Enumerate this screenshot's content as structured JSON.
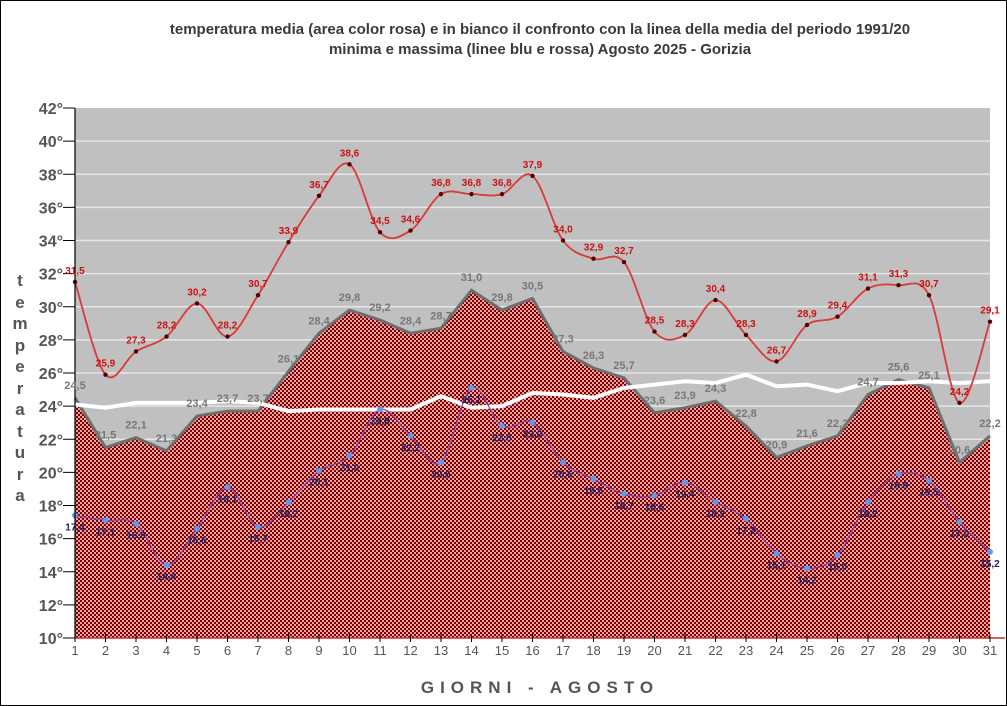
{
  "chart_data": {
    "type": "line",
    "title": "temperatura media (area color rosa) e in bianco il confronto con la linea della media del periodo 1991/20",
    "subtitle": "minima e massima (linee blu e rossa) Agosto 2025 - Gorizia",
    "xlabel": "GIORNI  - AGOSTO",
    "ylabel": "temperatura",
    "ylim": [
      10,
      42
    ],
    "yticks": [
      "10°",
      "12°",
      "14°",
      "16°",
      "18°",
      "20°",
      "22°",
      "24°",
      "26°",
      "28°",
      "30°",
      "32°",
      "34°",
      "36°",
      "38°",
      "40°",
      "42°"
    ],
    "ytick_values": [
      10,
      12,
      14,
      16,
      18,
      20,
      22,
      24,
      26,
      28,
      30,
      32,
      34,
      36,
      38,
      40,
      42
    ],
    "x": [
      1,
      2,
      3,
      4,
      5,
      6,
      7,
      8,
      9,
      10,
      11,
      12,
      13,
      14,
      15,
      16,
      17,
      18,
      19,
      20,
      21,
      22,
      23,
      24,
      25,
      26,
      27,
      28,
      29,
      30,
      31
    ],
    "grid": true,
    "series": [
      {
        "name": "massima",
        "kind": "line",
        "color": "#d93a3a",
        "values": [
          31.5,
          25.9,
          27.3,
          28.2,
          30.2,
          28.2,
          30.7,
          33.9,
          36.7,
          38.6,
          34.5,
          34.6,
          36.8,
          36.8,
          36.8,
          37.9,
          34.0,
          32.9,
          32.7,
          28.5,
          28.3,
          30.4,
          28.3,
          26.7,
          28.9,
          29.4,
          31.1,
          31.3,
          30.7,
          24.2,
          29.1
        ],
        "labels": [
          "31,5",
          "25,9",
          "27,3",
          "28,2",
          "30,2",
          "28,2",
          "30,7",
          "33,9",
          "36,7",
          "38,6",
          "34,5",
          "34,6",
          "36,8",
          "36,8",
          "36,8",
          "37,9",
          "34,0",
          "32,9",
          "32,7",
          "28,5",
          "28,3",
          "30,4",
          "28,3",
          "26,7",
          "28,9",
          "29,4",
          "31,1",
          "31,3",
          "30,7",
          "24,2",
          "29,1"
        ]
      },
      {
        "name": "media",
        "kind": "area",
        "color": "#8b0a0a",
        "values": [
          24.5,
          21.5,
          22.1,
          21.3,
          23.4,
          23.7,
          23.7,
          26.1,
          28.4,
          29.8,
          29.2,
          28.4,
          28.7,
          31.0,
          29.8,
          30.5,
          27.3,
          26.3,
          25.7,
          23.6,
          23.9,
          24.3,
          22.8,
          20.9,
          21.6,
          22.2,
          24.7,
          25.6,
          25.1,
          20.6,
          22.2
        ],
        "labels": [
          "24,5",
          "21,5",
          "22,1",
          "21,3",
          "23,4",
          "23,7",
          "23,7",
          "26,1",
          "28,4",
          "29,8",
          "29,2",
          "28,4",
          "28,7",
          "31,0",
          "29,8",
          "30,5",
          "27,3",
          "26,3",
          "25,7",
          "23,6",
          "23,9",
          "24,3",
          "22,8",
          "20,9",
          "21,6",
          "22,2",
          "24,7",
          "25,6",
          "25,1",
          "20,6",
          "22,2"
        ]
      },
      {
        "name": "minima",
        "kind": "line",
        "color": "#8a3fb0",
        "marker_color": "#5b9bef",
        "values": [
          17.4,
          17.1,
          16.9,
          14.4,
          16.6,
          19.1,
          16.7,
          18.2,
          20.1,
          21.0,
          23.8,
          22.2,
          20.6,
          25.1,
          22.8,
          23.0,
          20.6,
          19.6,
          18.7,
          18.6,
          19.4,
          18.2,
          17.2,
          15.1,
          14.2,
          15.0,
          18.2,
          19.9,
          19.5,
          17.0,
          15.2
        ],
        "labels": [
          "17,4",
          "17,1",
          "16,9",
          "14,4",
          "16,6",
          "19,1",
          "16,7",
          "18,2",
          "20,1",
          "21,0",
          "23,8",
          "22,2",
          "20,6",
          "25,1",
          "22,8",
          "23,0",
          "20,6",
          "19,6",
          "18,7",
          "18,6",
          "19,4",
          "18,2",
          "17,2",
          "15,1",
          "14,2",
          "15,0",
          "18,2",
          "19,9",
          "19,5",
          "17,0",
          "15,2"
        ]
      },
      {
        "name": "media 1991/20",
        "kind": "line",
        "color": "#ffffff",
        "values": [
          24.1,
          23.9,
          24.2,
          24.2,
          24.2,
          24.3,
          24.2,
          23.7,
          23.8,
          23.8,
          23.8,
          23.8,
          24.6,
          23.9,
          24.0,
          24.8,
          24.7,
          24.5,
          25.1,
          25.3,
          25.5,
          25.4,
          25.9,
          25.2,
          25.3,
          24.9,
          25.4,
          25.4,
          25.5,
          25.4,
          25.5
        ]
      }
    ]
  }
}
